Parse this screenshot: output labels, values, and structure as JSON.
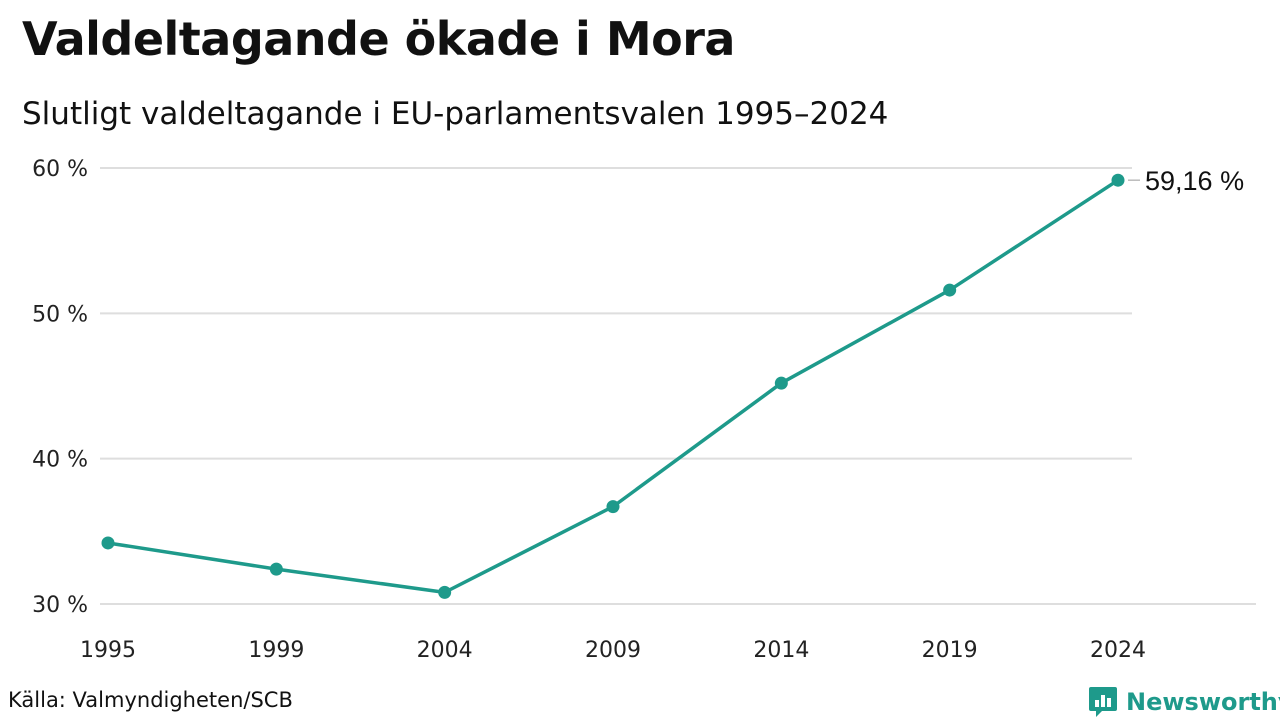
{
  "header": {
    "title": "Valdeltagande ökade i Mora",
    "subtitle": "Slutligt valdeltagande i EU-parlamentsvalen 1995–2024"
  },
  "footer": {
    "source": "Källa: Valmyndigheten/SCB",
    "brand": "Newsworthy",
    "brand_icon": "newsworthy-logo-icon"
  },
  "colors": {
    "line": "#1e9a8b",
    "grid": "#dedede",
    "brand": "#1e9a8b"
  },
  "chart_data": {
    "type": "line",
    "title": "Valdeltagande ökade i Mora",
    "subtitle": "Slutligt valdeltagande i EU-parlamentsvalen 1995–2024",
    "xlabel": "",
    "ylabel": "",
    "x": [
      "1995",
      "1999",
      "2004",
      "2009",
      "2014",
      "2019",
      "2024"
    ],
    "series": [
      {
        "values": [
          34.2,
          32.4,
          30.8,
          36.7,
          45.2,
          51.6,
          59.16
        ]
      }
    ],
    "ylim": [
      30,
      60
    ],
    "yticks": [
      30,
      40,
      50,
      60
    ],
    "ytick_labels": [
      "30 %",
      "40 %",
      "50 %",
      "60 %"
    ],
    "grid": "horizontal",
    "legend": "none",
    "end_label": "59,16 %"
  }
}
